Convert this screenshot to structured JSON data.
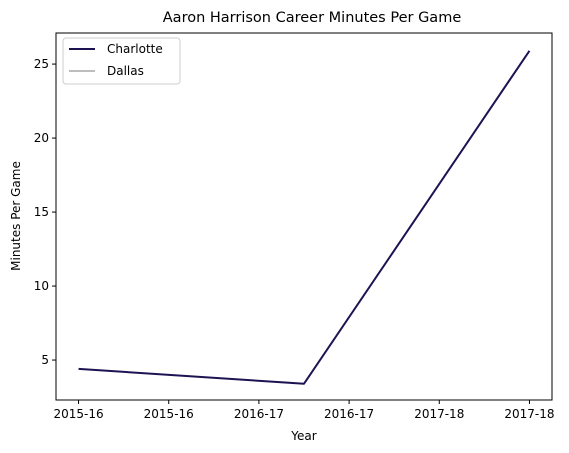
{
  "chart_data": {
    "type": "line",
    "title": "Aaron Harrison Career Minutes Per Game",
    "xlabel": "Year",
    "ylabel": "Minutes Per Game",
    "x_tick_labels": [
      "2015-16",
      "2015-16",
      "2016-17",
      "2016-17",
      "2017-18",
      "2017-18"
    ],
    "x_range": [
      -0.1,
      2.1
    ],
    "ylim": [
      2.3,
      27.1
    ],
    "y_ticks": [
      5,
      10,
      15,
      20,
      25
    ],
    "grid": false,
    "legend_position": "upper-left",
    "series": [
      {
        "name": "Charlotte",
        "color": "#1c1452",
        "x": [
          0,
          1,
          2
        ],
        "y": [
          4.4,
          3.4,
          25.9
        ]
      },
      {
        "name": "Dallas",
        "color": "#bdbdbd",
        "x": [],
        "y": []
      }
    ]
  }
}
